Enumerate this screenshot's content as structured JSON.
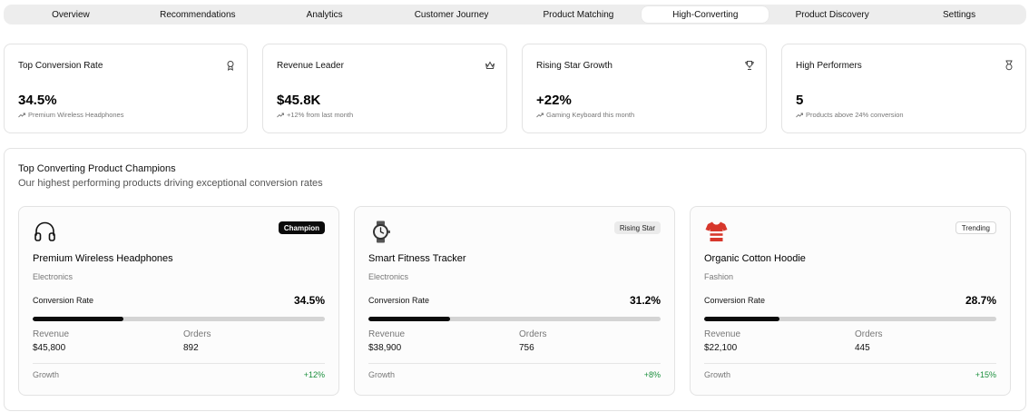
{
  "tabs": [
    {
      "label": "Overview",
      "active": false
    },
    {
      "label": "Recommendations",
      "active": false
    },
    {
      "label": "Analytics",
      "active": false
    },
    {
      "label": "Customer Journey",
      "active": false
    },
    {
      "label": "Product Matching",
      "active": false
    },
    {
      "label": "High-Converting",
      "active": true
    },
    {
      "label": "Product Discovery",
      "active": false
    },
    {
      "label": "Settings",
      "active": false
    }
  ],
  "stats": [
    {
      "title": "Top Conversion Rate",
      "value": "34.5%",
      "sub": "Premium Wireless Headphones",
      "icon": "award-icon"
    },
    {
      "title": "Revenue Leader",
      "value": "$45.8K",
      "sub": "+12% from last month",
      "icon": "crown-icon"
    },
    {
      "title": "Rising Star Growth",
      "value": "+22%",
      "sub": "Gaming Keyboard this month",
      "icon": "trophy-icon"
    },
    {
      "title": "High Performers",
      "value": "5",
      "sub": "Products above 24% conversion",
      "icon": "medal-icon"
    }
  ],
  "panel": {
    "title": "Top Converting Product Champions",
    "subtitle": "Our highest performing products driving exceptional conversion rates"
  },
  "labels": {
    "conversion": "Conversion Rate",
    "revenue": "Revenue",
    "orders": "Orders",
    "growth": "Growth"
  },
  "products": [
    {
      "icon": "headphones-icon",
      "badge": "Champion",
      "name": "Premium Wireless Headphones",
      "category": "Electronics",
      "conversion": "34.5%",
      "conversion_fraction": 0.345,
      "revenue": "$45,800",
      "orders": "892",
      "growth": "+12%"
    },
    {
      "icon": "watch-icon",
      "badge": "Rising Star",
      "name": "Smart Fitness Tracker",
      "category": "Electronics",
      "conversion": "31.2%",
      "conversion_fraction": 0.312,
      "revenue": "$38,900",
      "orders": "756",
      "growth": "+8%"
    },
    {
      "icon": "shirt-icon",
      "badge": "Trending",
      "name": "Organic Cotton Hoodie",
      "category": "Fashion",
      "conversion": "28.7%",
      "conversion_fraction": 0.287,
      "revenue": "$22,100",
      "orders": "445",
      "growth": "+15%"
    }
  ],
  "colors": {
    "accent": "#0b0b0b",
    "growth": "#1a8f3c",
    "track": "#d4d4d4"
  }
}
